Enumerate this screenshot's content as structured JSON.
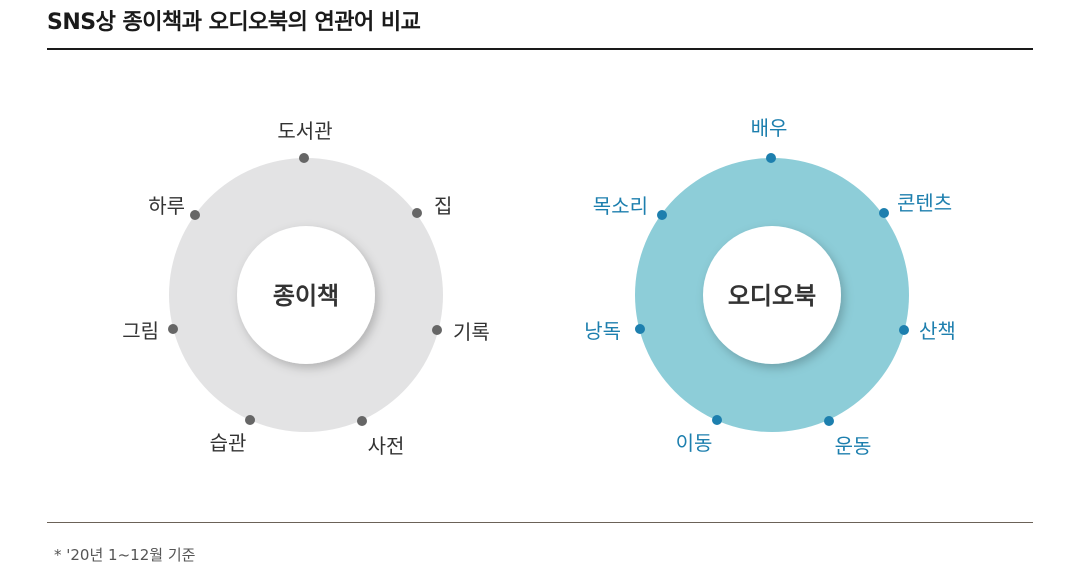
{
  "title": "SNS상 종이책과 오디오북의 연관어 비교",
  "footnote": "* '20년 1~12월 기준",
  "colors": {
    "paper_ring": "#e3e3e4",
    "paper_dot": "#666666",
    "paper_label": "#333333",
    "audio_ring": "#8dcdd8",
    "audio_dot": "#1d7fae",
    "audio_label": "#1d7fae",
    "center_fill": "#ffffff",
    "center_text": "#333333"
  },
  "diagrams": [
    {
      "id": "paper",
      "center_label": "종이책",
      "keywords": [
        "도서관",
        "집",
        "기록",
        "사전",
        "습관",
        "그림",
        "하루"
      ]
    },
    {
      "id": "audio",
      "center_label": "오디오북",
      "keywords": [
        "배우",
        "콘텐츠",
        "산책",
        "운동",
        "이동",
        "낭독",
        "목소리"
      ]
    }
  ]
}
